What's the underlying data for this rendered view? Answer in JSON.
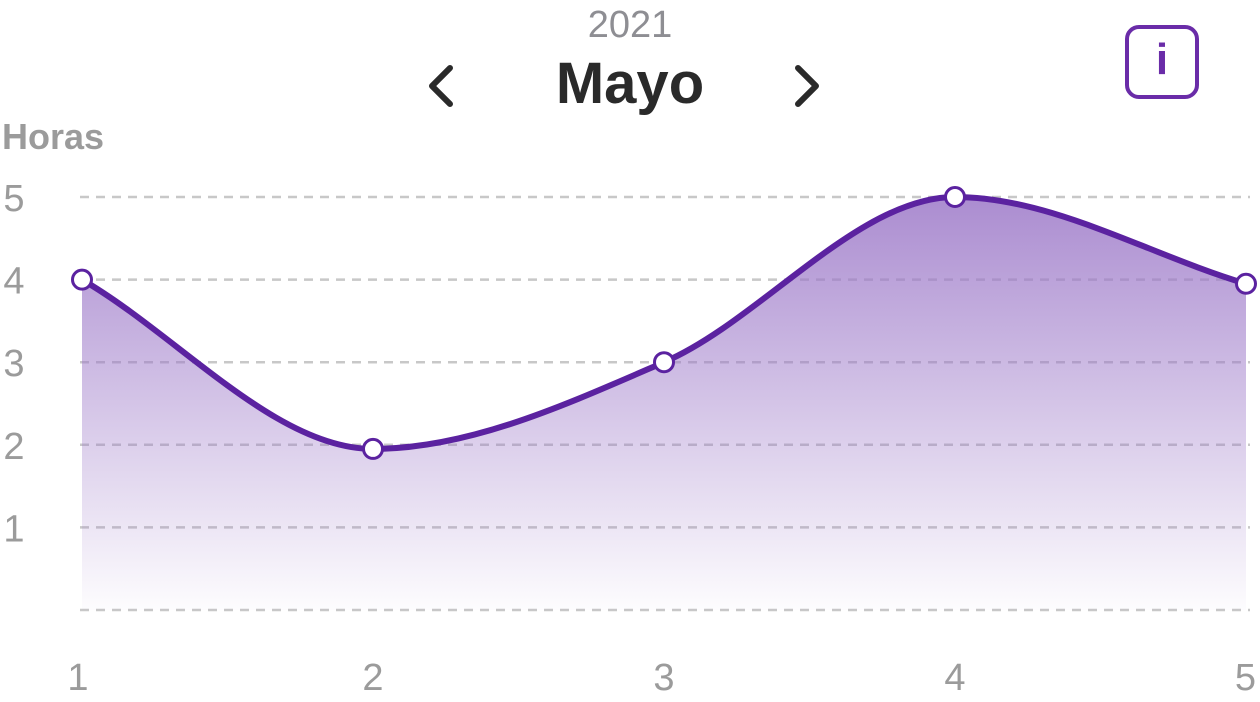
{
  "header": {
    "year": "2021",
    "month": "Mayo",
    "prev_icon": "chevron-left-icon",
    "next_icon": "chevron-right-icon",
    "info_icon": "info-icon",
    "info_glyph": "i"
  },
  "colors": {
    "accent": "#6a2ca8",
    "line": "#5b22a0",
    "area_top": "#9c78c8",
    "grid": "#c8c8c8",
    "tick_text": "#9b9b9b"
  },
  "chart_data": {
    "type": "area",
    "title": "",
    "xlabel": "",
    "ylabel": "Horas",
    "x": [
      1,
      2,
      3,
      4,
      5
    ],
    "x_tick_labels": [
      "1",
      "2",
      "3",
      "4",
      "5"
    ],
    "y_tick_labels": [
      "5",
      "4",
      "3",
      "2",
      "1"
    ],
    "y_ticks": [
      5,
      4,
      3,
      2,
      1
    ],
    "ylim": [
      0,
      5
    ],
    "grid": true,
    "grid_style": "dashed",
    "smooth": true,
    "series": [
      {
        "values": [
          4,
          1.95,
          3,
          5,
          3.95
        ]
      }
    ]
  }
}
